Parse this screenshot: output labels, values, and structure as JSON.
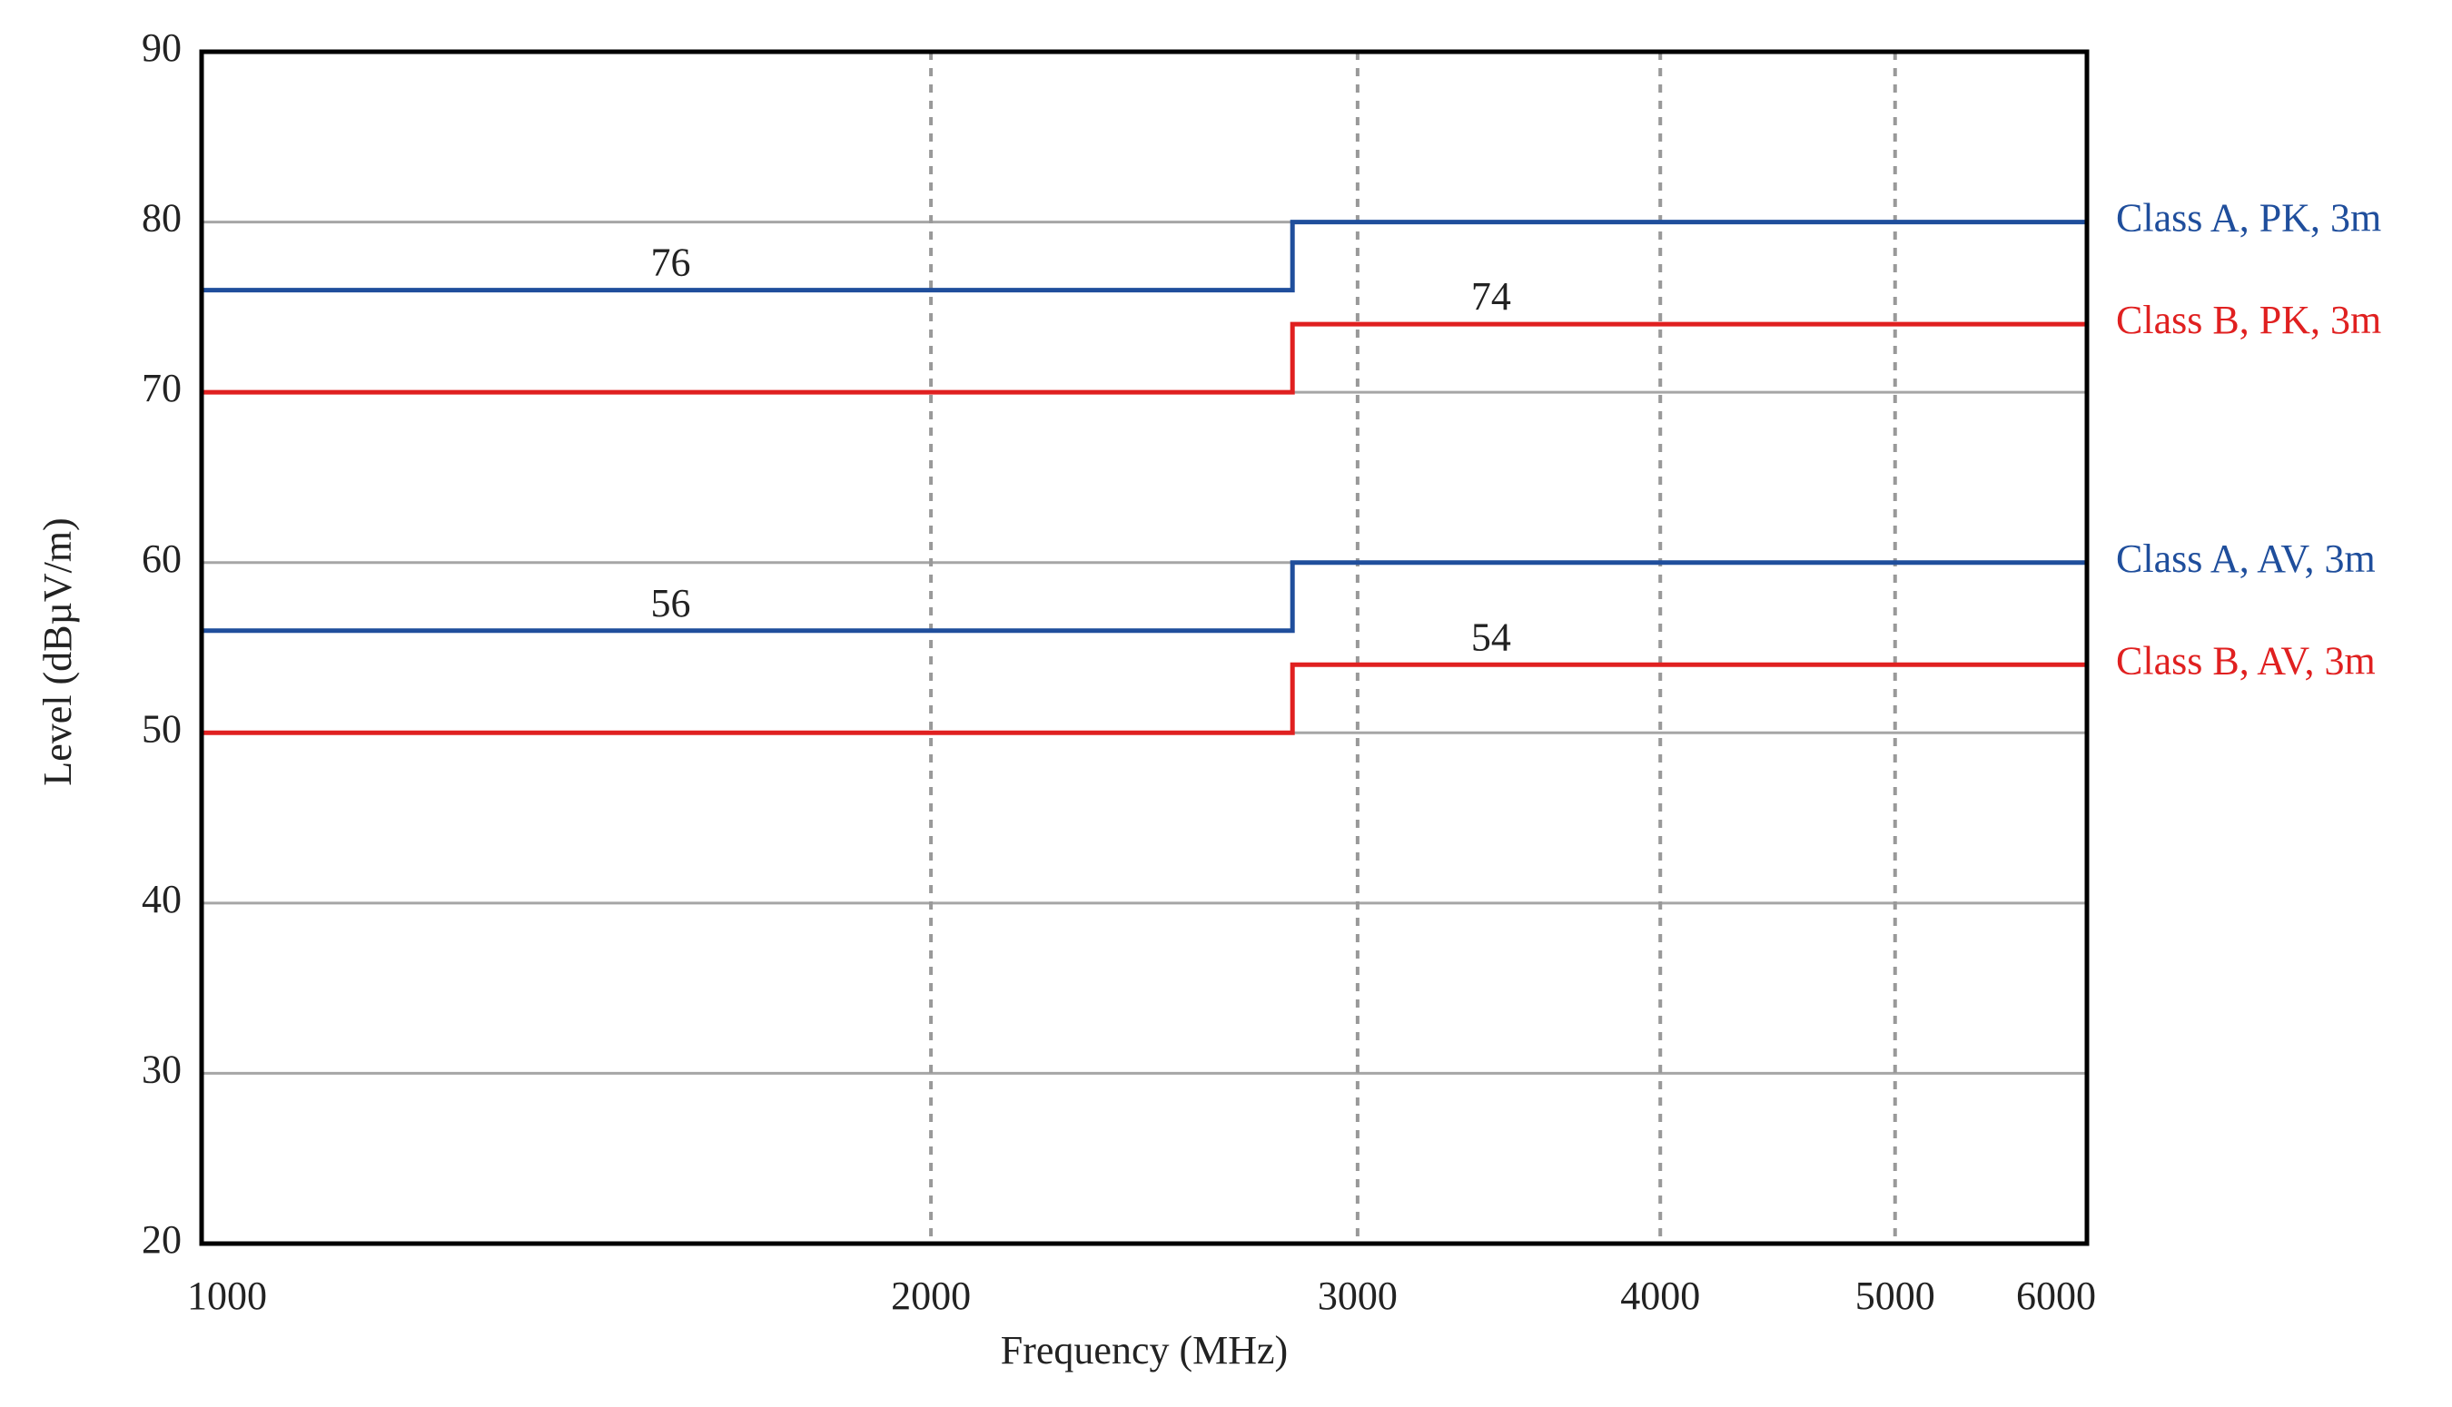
{
  "chart_data": {
    "type": "line",
    "xlabel": "Frequency (MHz)",
    "ylabel": "Level (dBµV/m)",
    "x": [
      1000,
      2820,
      2820,
      6000
    ],
    "series": [
      {
        "name": "Class A, PK, 3m",
        "color": "#1f4e9c",
        "values": [
          76,
          76,
          80,
          80
        ]
      },
      {
        "name": "Class B, PK, 3m",
        "color": "#e02020",
        "values": [
          70,
          70,
          74,
          74
        ]
      },
      {
        "name": "Class A, AV, 3m",
        "color": "#1f4e9c",
        "values": [
          56,
          56,
          60,
          60
        ]
      },
      {
        "name": "Class B, AV, 3m",
        "color": "#e02020",
        "values": [
          50,
          50,
          54,
          54
        ]
      }
    ],
    "xscale": "log",
    "xlim": [
      1000,
      6000
    ],
    "xticks": [
      1000,
      2000,
      3000,
      4000,
      5000,
      6000
    ],
    "ylim": [
      20,
      90
    ],
    "yticks": [
      20,
      30,
      40,
      50,
      60,
      70,
      80,
      90
    ],
    "grid": true
  }
}
